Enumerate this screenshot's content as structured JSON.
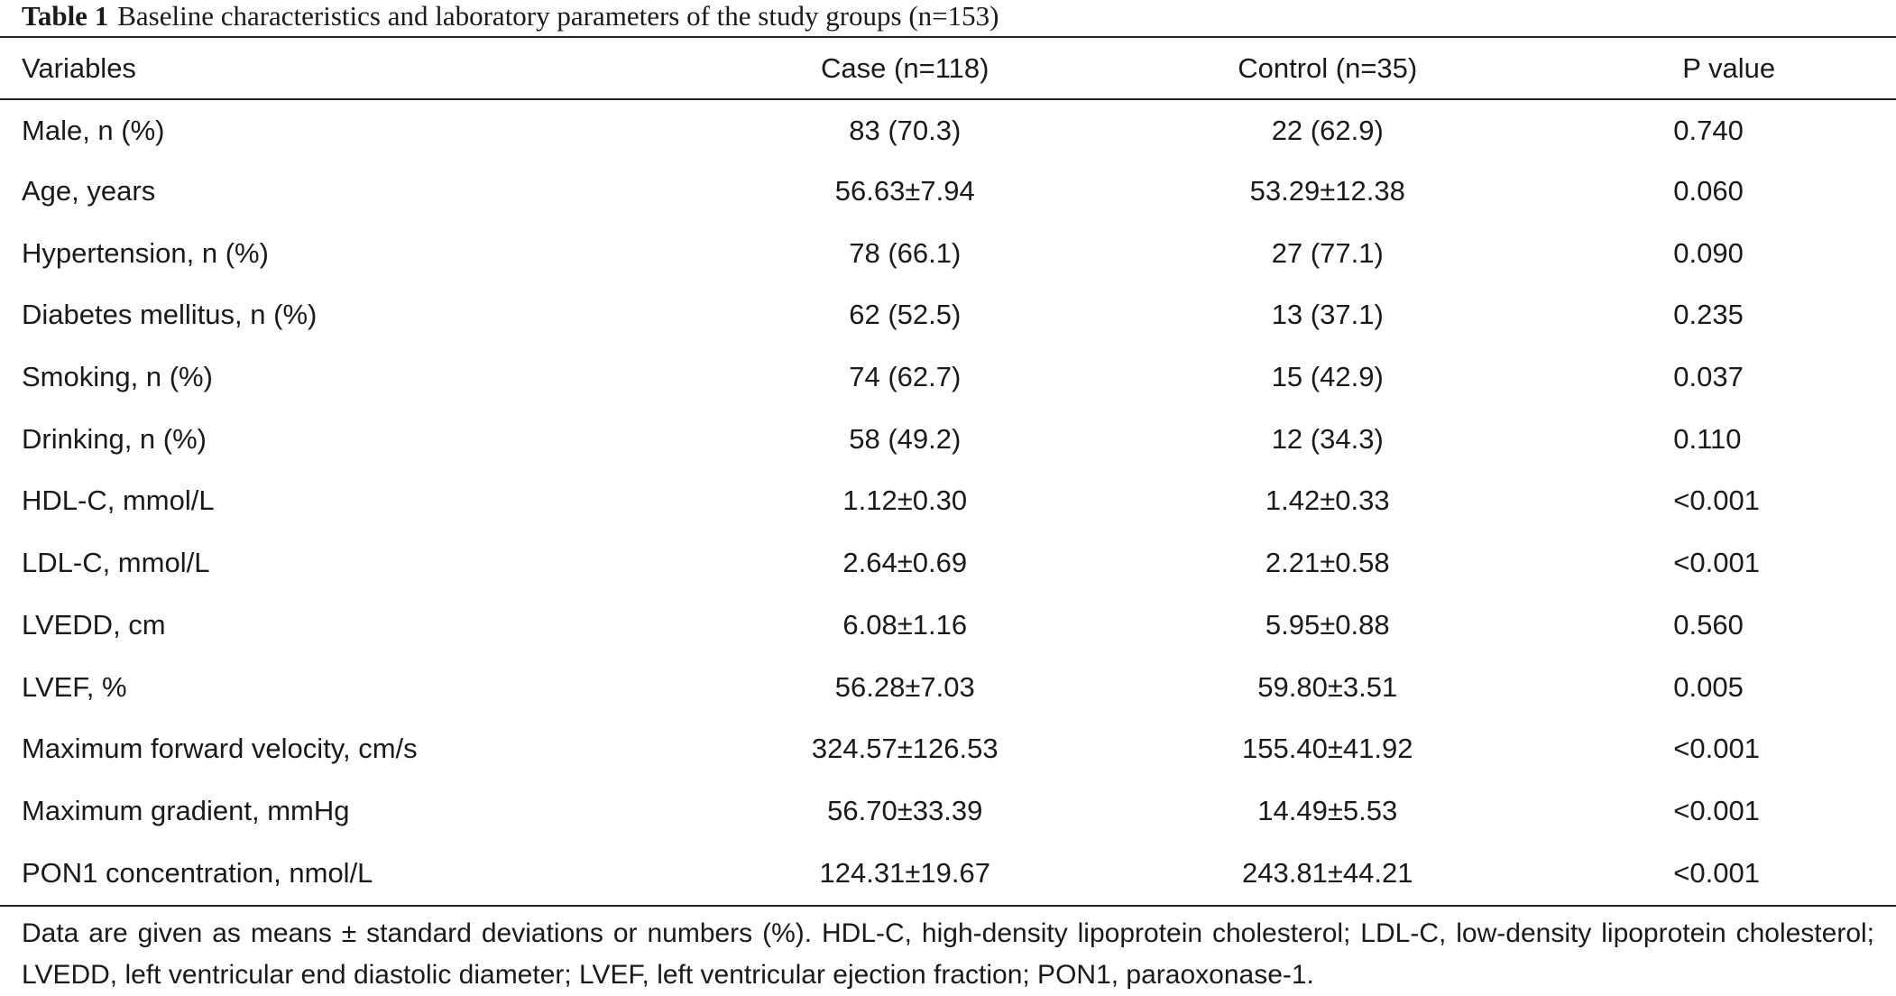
{
  "caption": {
    "label": "Table 1",
    "text": "Baseline characteristics and laboratory parameters of the study groups (n=153)"
  },
  "table": {
    "headers": [
      "Variables",
      "Case (n=118)",
      "Control (n=35)",
      "P value"
    ],
    "rows": [
      [
        "Male, n (%)",
        "83 (70.3)",
        "22 (62.9)",
        "0.740"
      ],
      [
        "Age, years",
        "56.63±7.94",
        "53.29±12.38",
        "0.060"
      ],
      [
        "Hypertension, n (%)",
        "78 (66.1)",
        "27 (77.1)",
        "0.090"
      ],
      [
        "Diabetes mellitus, n (%)",
        "62 (52.5)",
        "13 (37.1)",
        "0.235"
      ],
      [
        "Smoking, n (%)",
        "74 (62.7)",
        "15 (42.9)",
        "0.037"
      ],
      [
        "Drinking, n (%)",
        "58 (49.2)",
        "12 (34.3)",
        "0.110"
      ],
      [
        "HDL-C, mmol/L",
        "1.12±0.30",
        "1.42±0.33",
        "<0.001"
      ],
      [
        "LDL-C, mmol/L",
        "2.64±0.69",
        "2.21±0.58",
        "<0.001"
      ],
      [
        "LVEDD, cm",
        "6.08±1.16",
        "5.95±0.88",
        "0.560"
      ],
      [
        "LVEF, %",
        "56.28±7.03",
        "59.80±3.51",
        "0.005"
      ],
      [
        "Maximum forward velocity, cm/s",
        "324.57±126.53",
        "155.40±41.92",
        "<0.001"
      ],
      [
        "Maximum gradient, mmHg",
        "56.70±33.39",
        "14.49±5.53",
        "<0.001"
      ],
      [
        "PON1 concentration, nmol/L",
        "124.31±19.67",
        "243.81±44.21",
        "<0.001"
      ]
    ]
  },
  "footnote": "Data are given as means ± standard deviations or numbers (%). HDL-C, high-density lipoprotein cholesterol; LDL-C, low-density lipoprotein cholesterol; LVEDD, left ventricular end diastolic diameter; LVEF, left ventricular ejection fraction; PON1, paraoxonase-1."
}
